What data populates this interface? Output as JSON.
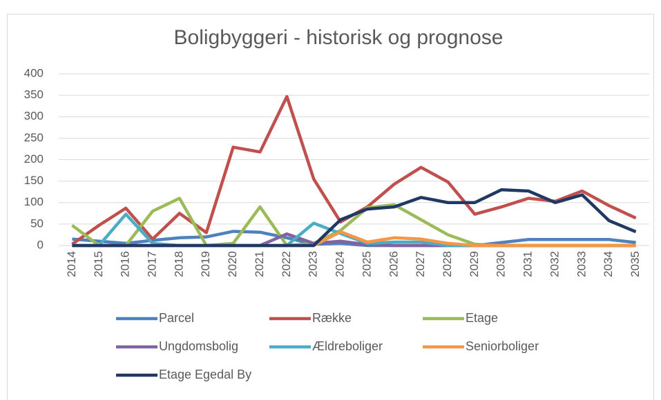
{
  "chart_data": {
    "type": "line",
    "title": "Boligbyggeri - historisk og prognose",
    "categories": [
      "2014",
      "2015",
      "2016",
      "2017",
      "2018",
      "2019",
      "2020",
      "2021",
      "2022",
      "2023",
      "2024",
      "2025",
      "2026",
      "2027",
      "2028",
      "2029",
      "2030",
      "2031",
      "2032",
      "2033",
      "2034",
      "2035"
    ],
    "series": [
      {
        "name": "Parcel",
        "color": "#4f81bd",
        "values": [
          15,
          10,
          5,
          12,
          18,
          20,
          33,
          31,
          18,
          3,
          5,
          0,
          0,
          0,
          0,
          0,
          7,
          14,
          14,
          14,
          14,
          7
        ]
      },
      {
        "name": "Række",
        "color": "#c0504d",
        "values": [
          3,
          47,
          87,
          15,
          75,
          30,
          229,
          218,
          347,
          155,
          55,
          90,
          143,
          182,
          148,
          73,
          90,
          110,
          103,
          127,
          93,
          64
        ]
      },
      {
        "name": "Etage",
        "color": "#9bbb59",
        "values": [
          47,
          0,
          0,
          80,
          110,
          0,
          5,
          90,
          0,
          5,
          35,
          88,
          95,
          60,
          25,
          3,
          0,
          0,
          0,
          0,
          0,
          0
        ]
      },
      {
        "name": "Ungdomsbolig",
        "color": "#8064a2",
        "values": [
          0,
          0,
          0,
          0,
          0,
          0,
          0,
          0,
          27,
          5,
          10,
          2,
          0,
          0,
          0,
          0,
          0,
          0,
          0,
          0,
          0,
          0
        ]
      },
      {
        "name": "Ældreboliger",
        "color": "#4bacc6",
        "values": [
          0,
          0,
          73,
          5,
          0,
          0,
          0,
          0,
          0,
          52,
          28,
          5,
          8,
          8,
          0,
          0,
          0,
          0,
          0,
          0,
          0,
          0
        ]
      },
      {
        "name": "Seniorboliger",
        "color": "#f79646",
        "values": [
          0,
          0,
          0,
          0,
          0,
          0,
          0,
          0,
          0,
          0,
          32,
          8,
          18,
          15,
          5,
          0,
          0,
          0,
          0,
          0,
          0,
          0
        ]
      },
      {
        "name": "Etage Egedal By",
        "color": "#1f3864",
        "values": [
          0,
          0,
          0,
          0,
          0,
          0,
          0,
          0,
          0,
          0,
          60,
          85,
          90,
          112,
          100,
          100,
          130,
          127,
          100,
          118,
          58,
          32
        ]
      }
    ],
    "ylim": [
      0,
      400
    ],
    "yticks": [
      0,
      50,
      100,
      150,
      200,
      250,
      300,
      350,
      400
    ],
    "grid": true
  }
}
